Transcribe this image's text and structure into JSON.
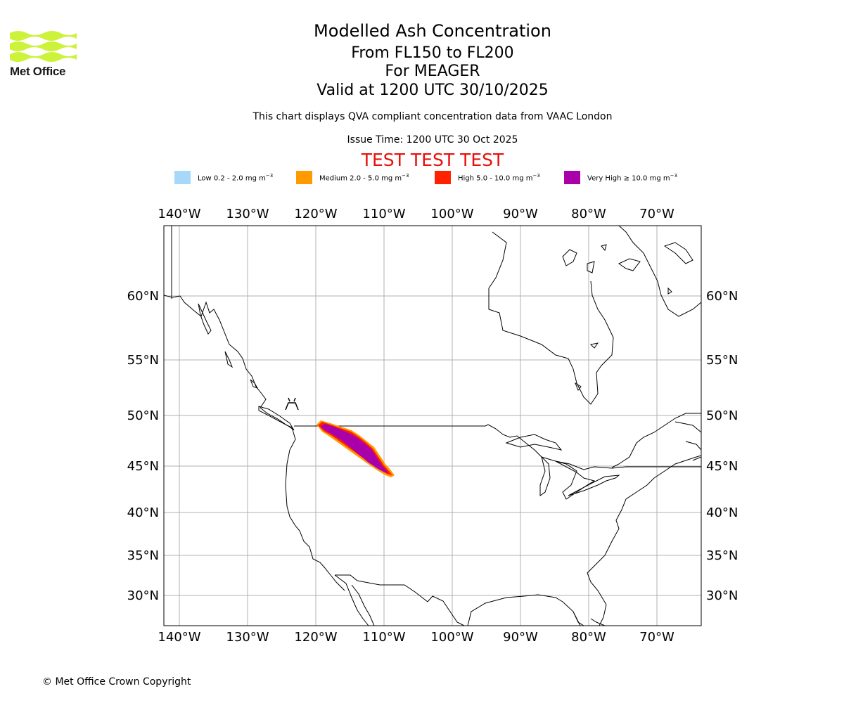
{
  "header": {
    "logo_text": "Met Office",
    "title": "Modelled Ash Concentration",
    "flight_levels": "From FL150 to FL200",
    "volcano": "For MEAGER",
    "valid_time": "Valid at 1200 UTC 30/10/2025",
    "description": "This chart displays QVA compliant concentration data from VAAC London",
    "issue_time": "Issue Time: 1200 UTC 30 Oct 2025",
    "test_banner": "TEST TEST TEST"
  },
  "legend": [
    {
      "label": "Low 0.2 - 2.0 mg m",
      "sup": "−3",
      "color": "#a6d8fa"
    },
    {
      "label": "Medium 2.0 - 5.0 mg m",
      "sup": "−3",
      "color": "#ff9a00"
    },
    {
      "label": "High 5.0 - 10.0 mg m",
      "sup": "−3",
      "color": "#ff2200"
    },
    {
      "label": "Very High  ≥  10.0 mg m",
      "sup": "−3",
      "color": "#aa00aa"
    }
  ],
  "map": {
    "lon_labels": [
      "140°W",
      "130°W",
      "120°W",
      "110°W",
      "100°W",
      "90°W",
      "80°W",
      "70°W"
    ],
    "lat_labels": [
      "60°N",
      "55°N",
      "50°N",
      "45°N",
      "40°N",
      "35°N",
      "30°N"
    ],
    "volcano_symbol": "volcano-icon",
    "ash_plume": {
      "level": "Very High",
      "from": "MEAGER",
      "direction": "southeast"
    }
  },
  "footer": {
    "copyright": "© Met Office Crown Copyright"
  },
  "colors": {
    "grid": "#b0b0b0",
    "coast": "#000000",
    "logo": "#ccf23a",
    "test": "#e8100c"
  }
}
